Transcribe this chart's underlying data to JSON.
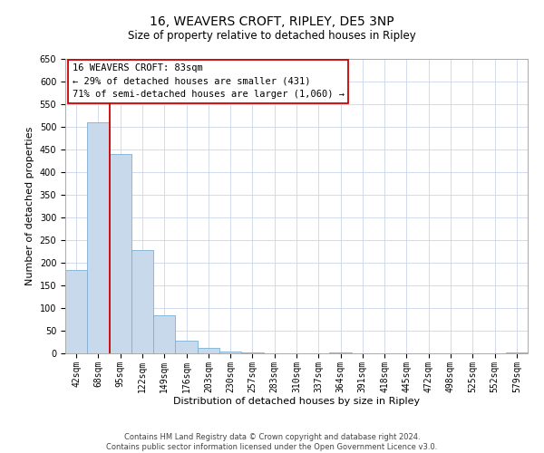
{
  "title": "16, WEAVERS CROFT, RIPLEY, DE5 3NP",
  "subtitle": "Size of property relative to detached houses in Ripley",
  "xlabel": "Distribution of detached houses by size in Ripley",
  "ylabel": "Number of detached properties",
  "bar_labels": [
    "42sqm",
    "68sqm",
    "95sqm",
    "122sqm",
    "149sqm",
    "176sqm",
    "203sqm",
    "230sqm",
    "257sqm",
    "283sqm",
    "310sqm",
    "337sqm",
    "364sqm",
    "391sqm",
    "418sqm",
    "445sqm",
    "472sqm",
    "498sqm",
    "525sqm",
    "552sqm",
    "579sqm"
  ],
  "bar_values": [
    185,
    510,
    440,
    228,
    85,
    28,
    13,
    5,
    2,
    0,
    0,
    0,
    2,
    0,
    0,
    0,
    0,
    0,
    0,
    0,
    2
  ],
  "bar_color": "#c9d9ec",
  "bar_edgecolor": "#7bafd4",
  "vline_x_index": 1,
  "vline_color": "#cc0000",
  "annotation_title": "16 WEAVERS CROFT: 83sqm",
  "annotation_line1": "← 29% of detached houses are smaller (431)",
  "annotation_line2": "71% of semi-detached houses are larger (1,060) →",
  "annotation_box_edgecolor": "#cc0000",
  "annotation_box_facecolor": "#ffffff",
  "ylim": [
    0,
    650
  ],
  "yticks": [
    0,
    50,
    100,
    150,
    200,
    250,
    300,
    350,
    400,
    450,
    500,
    550,
    600,
    650
  ],
  "footer_line1": "Contains HM Land Registry data © Crown copyright and database right 2024.",
  "footer_line2": "Contains public sector information licensed under the Open Government Licence v3.0.",
  "background_color": "#ffffff",
  "grid_color": "#ccd6e8",
  "title_fontsize": 10,
  "subtitle_fontsize": 8.5,
  "axis_label_fontsize": 8,
  "tick_fontsize": 7,
  "annotation_fontsize": 7.5,
  "footer_fontsize": 6
}
